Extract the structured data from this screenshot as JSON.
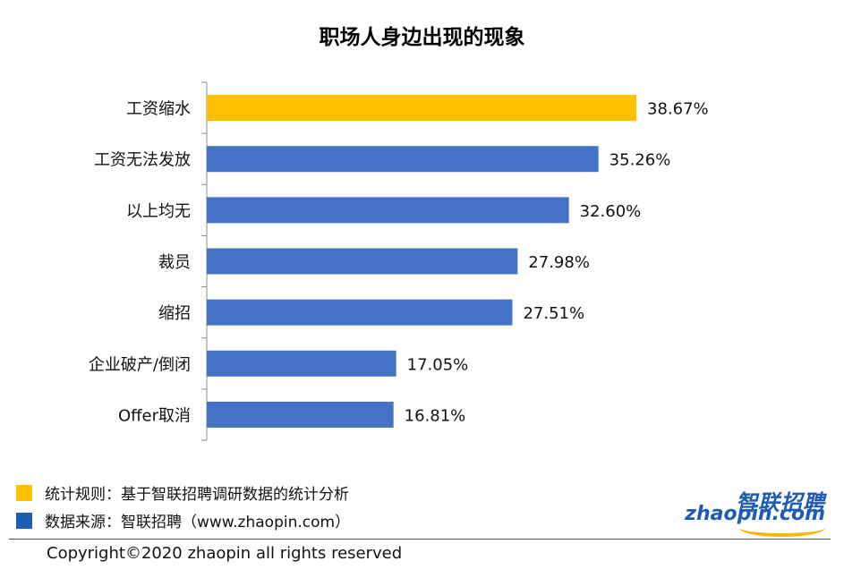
{
  "chart_data": {
    "type": "bar",
    "orientation": "horizontal",
    "title": "职场人身边出现的现象",
    "categories": [
      "工资缩水",
      "工资无法发放",
      "以上均无",
      "裁员",
      "缩招",
      "企业破产/倒闭",
      "Offer取消"
    ],
    "values": [
      38.67,
      35.26,
      32.6,
      27.98,
      27.51,
      17.05,
      16.81
    ],
    "value_labels": [
      "38.67%",
      "35.26%",
      "32.60%",
      "27.98%",
      "27.51%",
      "17.05%",
      "16.81%"
    ],
    "highlight_color": "#FFC000",
    "bar_color": "#4472C4",
    "highlight_index": 0,
    "grid": false,
    "legend": "none"
  },
  "notes": {
    "rule": "统计规则：基于智联招聘调研数据的统计分析",
    "rule_color": "#FFC000",
    "source": "数据来源：智联招聘（www.zhaopin.com）",
    "source_color": "#1F5CB8"
  },
  "copyright": "Copyright©2020 zhaopin all rights reserved",
  "logo": {
    "cn": "智联招聘",
    "en": "zhaopin.com"
  }
}
